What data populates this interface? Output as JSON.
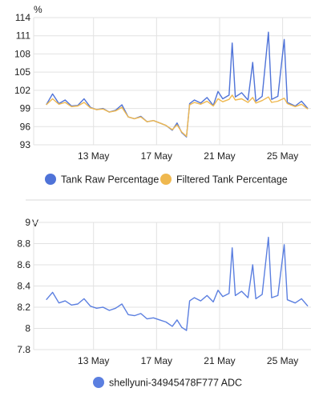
{
  "colors": {
    "raw": "#4f73d8",
    "filtered": "#efb84f",
    "adc": "#5b7fe0"
  },
  "chart_data": [
    {
      "type": "line",
      "unit": "%",
      "ylim": [
        93,
        114
      ],
      "yticks": [
        "93",
        "96",
        "99",
        "102",
        "105",
        "108",
        "111",
        "114"
      ],
      "xticks": [
        "13 May",
        "17 May",
        "21 May",
        "25 May"
      ],
      "grid": true,
      "legend_position": "bottom",
      "series": [
        {
          "name": "Tank Raw Percentage",
          "color": "#4f73d8",
          "points": [
            [
              "10 May",
              99.6
            ],
            [
              "10.4 May",
              101.4
            ],
            [
              "10.8 May",
              99.8
            ],
            [
              "11.2 May",
              100.4
            ],
            [
              "11.6 May",
              99.4
            ],
            [
              "12 May",
              99.5
            ],
            [
              "12.4 May",
              100.6
            ],
            [
              "12.8 May",
              99.2
            ],
            [
              "13.2 May",
              98.8
            ],
            [
              "13.6 May",
              99.0
            ],
            [
              "14 May",
              98.4
            ],
            [
              "14.4 May",
              98.7
            ],
            [
              "14.8 May",
              99.6
            ],
            [
              "15.2 May",
              97.6
            ],
            [
              "15.6 May",
              97.3
            ],
            [
              "16 May",
              97.7
            ],
            [
              "16.4 May",
              96.8
            ],
            [
              "16.8 May",
              97.0
            ],
            [
              "17.2 May",
              96.6
            ],
            [
              "17.6 May",
              96.2
            ],
            [
              "18 May",
              95.4
            ],
            [
              "18.3 May",
              96.6
            ],
            [
              "18.6 May",
              95.0
            ],
            [
              "18.9 May",
              94.3
            ],
            [
              "19.1 May",
              99.8
            ],
            [
              "19.4 May",
              100.4
            ],
            [
              "19.8 May",
              99.9
            ],
            [
              "20.2 May",
              100.8
            ],
            [
              "20.6 May",
              99.5
            ],
            [
              "20.9 May",
              101.8
            ],
            [
              "21.2 May",
              100.6
            ],
            [
              "21.6 May",
              101.2
            ],
            [
              "21.8 May",
              109.8
            ],
            [
              "22 May",
              100.9
            ],
            [
              "22.4 May",
              101.6
            ],
            [
              "22.8 May",
              100.4
            ],
            [
              "23.1 May",
              106.6
            ],
            [
              "23.3 May",
              100.2
            ],
            [
              "23.7 May",
              101.0
            ],
            [
              "24.1 May",
              111.6
            ],
            [
              "24.3 May",
              100.5
            ],
            [
              "24.7 May",
              101.0
            ],
            [
              "25.1 May",
              110.4
            ],
            [
              "25.3 May",
              100.0
            ],
            [
              "25.8 May",
              99.4
            ],
            [
              "26.2 May",
              100.2
            ],
            [
              "26.6 May",
              99.0
            ]
          ]
        },
        {
          "name": "Filtered Tank Percentage",
          "color": "#efb84f",
          "points": [
            [
              "10 May",
              99.6
            ],
            [
              "10.4 May",
              100.6
            ],
            [
              "10.8 May",
              99.7
            ],
            [
              "11.2 May",
              100.0
            ],
            [
              "11.6 May",
              99.3
            ],
            [
              "12 May",
              99.4
            ],
            [
              "12.4 May",
              100.0
            ],
            [
              "12.8 May",
              99.1
            ],
            [
              "13.2 May",
              98.8
            ],
            [
              "13.6 May",
              98.9
            ],
            [
              "14 May",
              98.4
            ],
            [
              "14.4 May",
              98.6
            ],
            [
              "14.8 May",
              99.2
            ],
            [
              "15.2 May",
              97.6
            ],
            [
              "15.6 May",
              97.3
            ],
            [
              "16 May",
              97.6
            ],
            [
              "16.4 May",
              96.8
            ],
            [
              "16.8 May",
              97.0
            ],
            [
              "17.2 May",
              96.6
            ],
            [
              "17.6 May",
              96.2
            ],
            [
              "18 May",
              95.5
            ],
            [
              "18.3 May",
              96.3
            ],
            [
              "18.6 May",
              95.1
            ],
            [
              "18.9 May",
              94.4
            ],
            [
              "19.1 May",
              99.6
            ],
            [
              "19.4 May",
              100.0
            ],
            [
              "19.8 May",
              99.7
            ],
            [
              "20.2 May",
              100.2
            ],
            [
              "20.6 May",
              99.4
            ],
            [
              "20.9 May",
              100.6
            ],
            [
              "21.2 May",
              100.1
            ],
            [
              "21.6 May",
              100.5
            ],
            [
              "21.8 May",
              101.2
            ],
            [
              "22 May",
              100.4
            ],
            [
              "22.4 May",
              100.6
            ],
            [
              "22.8 May",
              100.0
            ],
            [
              "23.1 May",
              100.8
            ],
            [
              "23.3 May",
              99.9
            ],
            [
              "23.7 May",
              100.3
            ],
            [
              "24.1 May",
              100.9
            ],
            [
              "24.3 May",
              100.0
            ],
            [
              "24.7 May",
              100.2
            ],
            [
              "25.1 May",
              100.7
            ],
            [
              "25.3 May",
              99.8
            ],
            [
              "25.8 May",
              99.3
            ],
            [
              "26.2 May",
              99.7
            ],
            [
              "26.6 May",
              98.9
            ]
          ]
        }
      ]
    },
    {
      "type": "line",
      "unit": "V",
      "ylim": [
        7.8,
        9.0
      ],
      "yticks": [
        "7.8",
        "8",
        "8.2",
        "8.4",
        "8.6",
        "8.8",
        "9"
      ],
      "xticks": [
        "13 May",
        "17 May",
        "21 May",
        "25 May"
      ],
      "grid": true,
      "legend_position": "bottom",
      "series": [
        {
          "name": "shellyuni-34945478F777 ADC",
          "color": "#5b7fe0",
          "points": [
            [
              "10 May",
              8.27
            ],
            [
              "10.4 May",
              8.34
            ],
            [
              "10.8 May",
              8.24
            ],
            [
              "11.2 May",
              8.26
            ],
            [
              "11.6 May",
              8.22
            ],
            [
              "12 May",
              8.23
            ],
            [
              "12.4 May",
              8.28
            ],
            [
              "12.8 May",
              8.21
            ],
            [
              "13.2 May",
              8.19
            ],
            [
              "13.6 May",
              8.2
            ],
            [
              "14 May",
              8.17
            ],
            [
              "14.4 May",
              8.19
            ],
            [
              "14.8 May",
              8.23
            ],
            [
              "15.2 May",
              8.13
            ],
            [
              "15.6 May",
              8.12
            ],
            [
              "16 May",
              8.14
            ],
            [
              "16.4 May",
              8.09
            ],
            [
              "16.8 May",
              8.1
            ],
            [
              "17.2 May",
              8.08
            ],
            [
              "17.6 May",
              8.06
            ],
            [
              "18 May",
              8.02
            ],
            [
              "18.3 May",
              8.08
            ],
            [
              "18.6 May",
              8.01
            ],
            [
              "18.9 May",
              7.98
            ],
            [
              "19.1 May",
              8.26
            ],
            [
              "19.4 May",
              8.29
            ],
            [
              "19.8 May",
              8.26
            ],
            [
              "20.2 May",
              8.31
            ],
            [
              "20.6 May",
              8.25
            ],
            [
              "20.9 May",
              8.36
            ],
            [
              "21.2 May",
              8.3
            ],
            [
              "21.6 May",
              8.33
            ],
            [
              "21.8 May",
              8.76
            ],
            [
              "22 May",
              8.31
            ],
            [
              "22.4 May",
              8.35
            ],
            [
              "22.8 May",
              8.29
            ],
            [
              "23.1 May",
              8.6
            ],
            [
              "23.3 May",
              8.28
            ],
            [
              "23.7 May",
              8.32
            ],
            [
              "24.1 May",
              8.86
            ],
            [
              "24.3 May",
              8.29
            ],
            [
              "24.7 May",
              8.31
            ],
            [
              "25.1 May",
              8.79
            ],
            [
              "25.3 May",
              8.27
            ],
            [
              "25.8 May",
              8.24
            ],
            [
              "26.2 May",
              8.28
            ],
            [
              "26.6 May",
              8.21
            ]
          ]
        }
      ]
    }
  ]
}
